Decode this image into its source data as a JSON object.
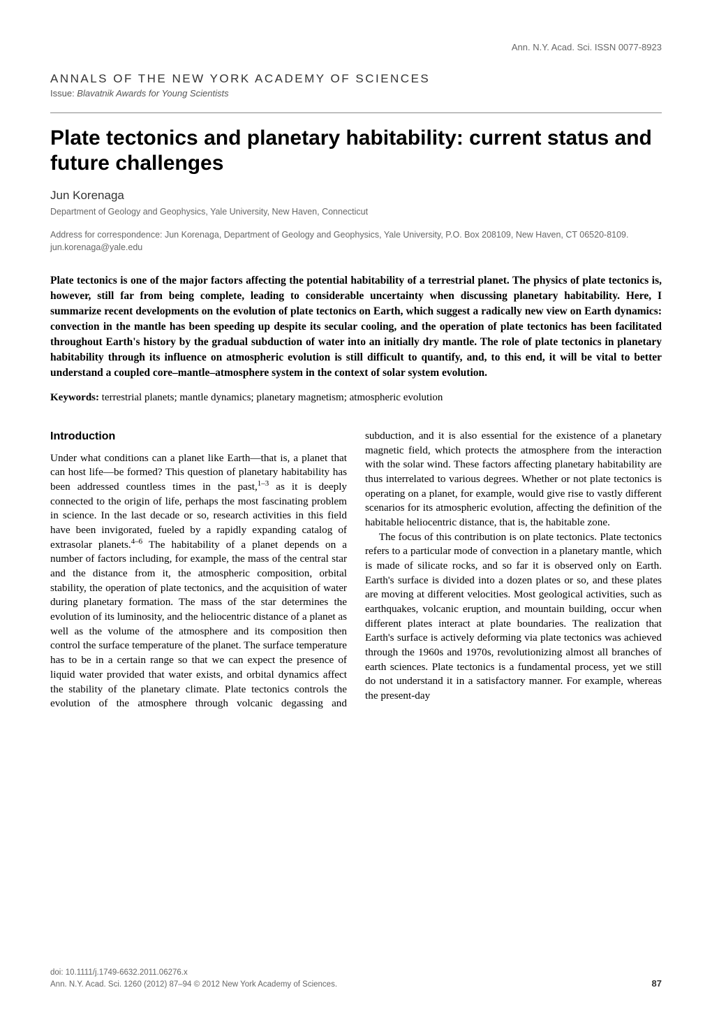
{
  "header": {
    "issn": "Ann. N.Y. Acad. Sci. ISSN 0077-8923",
    "annals": "ANNALS OF THE NEW YORK ACADEMY OF SCIENCES",
    "issue_label": "Issue: ",
    "issue_name": "Blavatnik Awards for Young Scientists"
  },
  "article": {
    "title": "Plate tectonics and planetary habitability: current status and future challenges",
    "author": "Jun Korenaga",
    "affiliation": "Department of Geology and Geophysics, Yale University, New Haven, Connecticut",
    "correspondence": "Address for correspondence: Jun Korenaga, Department of Geology and Geophysics, Yale University, P.O. Box 208109, New Haven, CT 06520-8109. jun.korenaga@yale.edu"
  },
  "abstract": "Plate tectonics is one of the major factors affecting the potential habitability of a terrestrial planet. The physics of plate tectonics is, however, still far from being complete, leading to considerable uncertainty when discussing planetary habitability. Here, I summarize recent developments on the evolution of plate tectonics on Earth, which suggest a radically new view on Earth dynamics: convection in the mantle has been speeding up despite its secular cooling, and the operation of plate tectonics has been facilitated throughout Earth's history by the gradual subduction of water into an initially dry mantle. The role of plate tectonics in planetary habitability through its influence on atmospheric evolution is still difficult to quantify, and, to this end, it will be vital to better understand a coupled core–mantle–atmosphere system in the context of solar system evolution.",
  "keywords": {
    "label": "Keywords:",
    "text": " terrestrial planets; mantle dynamics; planetary magnetism; atmospheric evolution"
  },
  "sections": {
    "intro_heading": "Introduction",
    "p1a": "Under what conditions can a planet like Earth—that is, a planet that can host life—be formed? This question of planetary habitability has been addressed countless times in the past,",
    "p1b": " as it is deeply connected to the origin of life, perhaps the most fascinating problem in science. In the last decade or so, research activities in this field have been invigorated, fueled by a rapidly expanding catalog of extrasolar planets.",
    "p1c": " The habitability of a planet depends on a number of factors including, for example, the mass of the central star and the distance from it, the atmospheric composition, orbital stability, the operation of plate tectonics, and the acquisition of water during planetary formation. The mass of the star determines the evolution of its luminosity, and the heliocentric distance of a planet as well as the volume of the atmosphere and its composition then control the surface temperature of the planet. The surface temperature has to be in a certain range so that we can expect the presence of liquid water provided that water exists, and orbital dynamics affect the stability of the planetary climate. Plate tectonics controls the evolution of the atmosphere through volcanic degassing and subduction, and it is also essential for the existence of a planetary magnetic field, which protects the atmosphere from the interaction with the solar wind. These factors affecting planetary habitability are thus interrelated to various degrees. Whether or not plate tectonics is operating on a planet, for example, would give rise to vastly different scenarios for its atmospheric evolution, affecting the definition of the habitable heliocentric distance, that is, the habitable zone.",
    "p2": "The focus of this contribution is on plate tectonics. Plate tectonics refers to a particular mode of convection in a planetary mantle, which is made of silicate rocks, and so far it is observed only on Earth. Earth's surface is divided into a dozen plates or so, and these plates are moving at different velocities. Most geological activities, such as earthquakes, volcanic eruption, and mountain building, occur when different plates interact at plate boundaries. The realization that Earth's surface is actively deforming via plate tectonics was achieved through the 1960s and 1970s, revolutionizing almost all branches of earth sciences. Plate tectonics is a fundamental process, yet we still do not understand it in a satisfactory manner. For example, whereas the present-day",
    "ref1": "1–3",
    "ref2": "4–6"
  },
  "footer": {
    "doi": "doi: 10.1111/j.1749-6632.2011.06276.x",
    "citation": "Ann. N.Y. Acad. Sci. 1260 (2012) 87–94 © 2012 New York Academy of Sciences.",
    "page": "87"
  }
}
